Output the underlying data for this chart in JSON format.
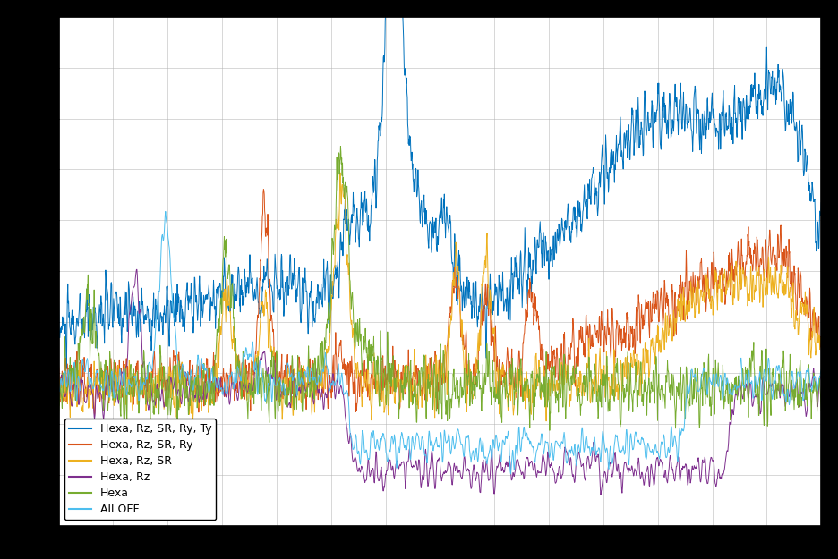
{
  "legend_labels": [
    "Hexa, Rz, SR, Ry, Ty",
    "Hexa, Rz, SR, Ry",
    "Hexa, Rz, SR",
    "Hexa, Rz",
    "Hexa",
    "All OFF"
  ],
  "colors": [
    "#0072BD",
    "#D95319",
    "#EDB120",
    "#7E2F8E",
    "#77AC30",
    "#4DBEEE"
  ],
  "background_color": "#000000",
  "axes_facecolor": "#ffffff",
  "grid_color": "#b0b0b0",
  "n_points": 2000,
  "figsize": [
    9.36,
    6.25
  ],
  "dpi": 100,
  "legend_loc": "lower left",
  "legend_fontsize": 9,
  "linewidth": 0.7
}
